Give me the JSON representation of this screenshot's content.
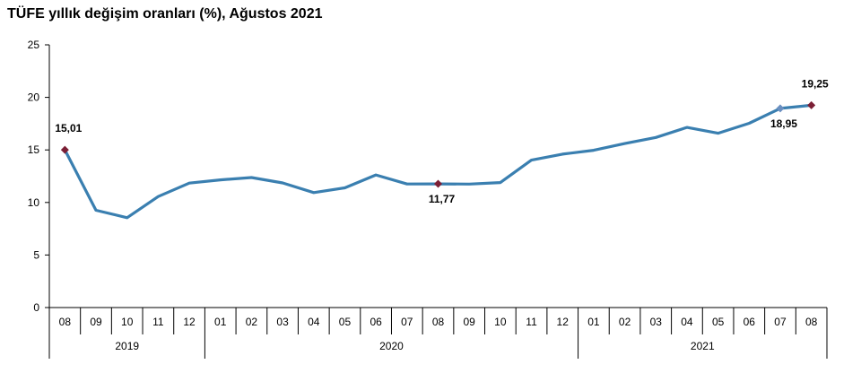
{
  "chart_data": {
    "type": "line",
    "title": "TÜFE yıllık değişim oranları (%), Ağustos 2021",
    "categories": [
      "08",
      "09",
      "10",
      "11",
      "12",
      "01",
      "02",
      "03",
      "04",
      "05",
      "06",
      "07",
      "08",
      "09",
      "10",
      "11",
      "12",
      "01",
      "02",
      "03",
      "04",
      "05",
      "06",
      "07",
      "08"
    ],
    "year_groups": [
      {
        "label": "2019",
        "count": 5
      },
      {
        "label": "2020",
        "count": 12
      },
      {
        "label": "2021",
        "count": 8
      }
    ],
    "series": [
      {
        "values": [
          15.01,
          9.26,
          8.55,
          10.56,
          11.84,
          12.15,
          12.37,
          11.86,
          10.94,
          11.39,
          12.62,
          11.76,
          11.77,
          11.75,
          11.89,
          14.03,
          14.6,
          14.97,
          15.61,
          16.19,
          17.14,
          16.59,
          17.53,
          18.95,
          19.25
        ],
        "color": "#3a7fb0"
      }
    ],
    "ylim": [
      0,
      25
    ],
    "yticks": [
      0,
      5,
      10,
      15,
      20,
      25
    ],
    "grid": false,
    "xlabel": "",
    "ylabel": "",
    "data_labels": [
      {
        "index": 0,
        "text": "15,01",
        "position": "above"
      },
      {
        "index": 12,
        "text": "11,77",
        "position": "below"
      },
      {
        "index": 23,
        "text": "18,95",
        "position": "below"
      },
      {
        "index": 24,
        "text": "19,25",
        "position": "above"
      }
    ],
    "markers": [
      {
        "index": 0,
        "color": "#7b1f35"
      },
      {
        "index": 12,
        "color": "#7b1f35"
      },
      {
        "index": 23,
        "color": "#6a8fc0"
      },
      {
        "index": 24,
        "color": "#7b1f35"
      }
    ]
  }
}
